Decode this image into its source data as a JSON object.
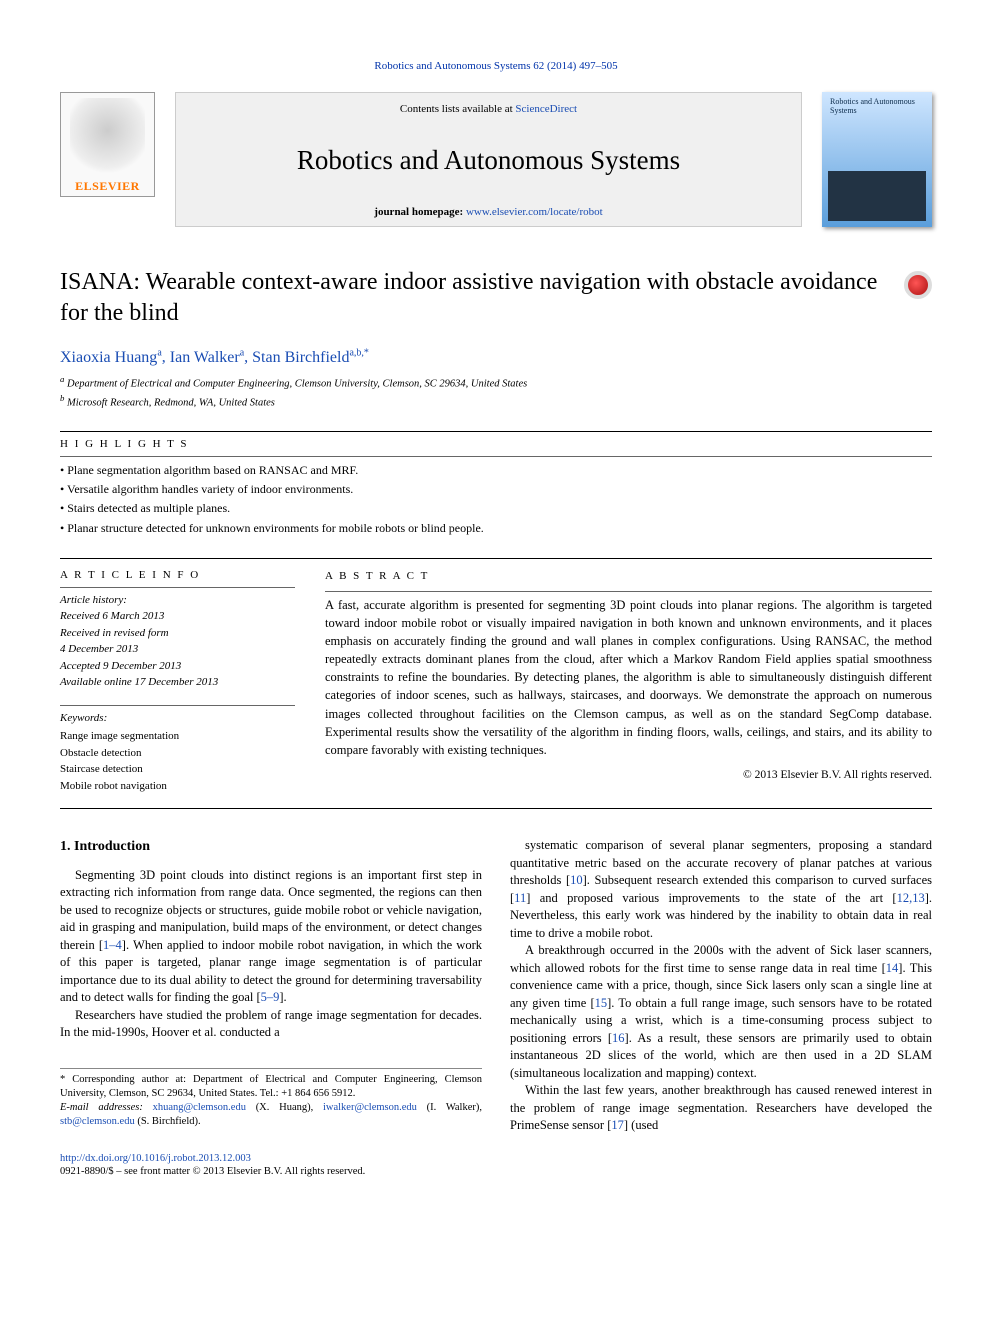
{
  "running_header": "Robotics and Autonomous Systems 62 (2014) 497–505",
  "masthead": {
    "elsevier": "ELSEVIER",
    "contents_prefix": "Contents lists available at ",
    "contents_link": "ScienceDirect",
    "journal_title": "Robotics and Autonomous Systems",
    "homepage_prefix": "journal homepage: ",
    "homepage_link": "www.elsevier.com/locate/robot",
    "cover_title": "Robotics and Autonomous Systems"
  },
  "title": "ISANA: Wearable context-aware indoor assistive navigation with obstacle avoidance for the blind",
  "authors_html": "Xiaoxia Huang|a|, Ian Walker|a|, Stan Birchfield|a,b,*",
  "authors": [
    {
      "name": "Xiaoxia Huang",
      "sup": "a"
    },
    {
      "name": "Ian Walker",
      "sup": "a"
    },
    {
      "name": "Stan Birchfield",
      "sup": "a,b,*"
    }
  ],
  "affiliations": [
    "a Department of Electrical and Computer Engineering, Clemson University, Clemson, SC 29634, United States",
    "b Microsoft Research, Redmond, WA, United States"
  ],
  "highlights_label": "H I G H L I G H T S",
  "highlights": [
    "Plane segmentation algorithm based on RANSAC and MRF.",
    "Versatile algorithm handles variety of indoor environments.",
    "Stairs detected as multiple planes.",
    "Planar structure detected for unknown environments for mobile robots or blind people."
  ],
  "info_label": "A R T I C L E   I N F O",
  "history_label": "Article history:",
  "history": [
    "Received 6 March 2013",
    "Received in revised form",
    "4 December 2013",
    "Accepted 9 December 2013",
    "Available online 17 December 2013"
  ],
  "keywords_label": "Keywords:",
  "keywords": [
    "Range image segmentation",
    "Obstacle detection",
    "Staircase detection",
    "Mobile robot navigation"
  ],
  "abstract_label": "A B S T R A C T",
  "abstract": "A fast, accurate algorithm is presented for segmenting 3D point clouds into planar regions. The algorithm is targeted toward indoor mobile robot or visually impaired navigation in both known and unknown environments, and it places emphasis on accurately finding the ground and wall planes in complex configurations. Using RANSAC, the method repeatedly extracts dominant planes from the cloud, after which a Markov Random Field applies spatial smoothness constraints to refine the boundaries. By detecting planes, the algorithm is able to simultaneously distinguish different categories of indoor scenes, such as hallways, staircases, and doorways. We demonstrate the approach on numerous images collected throughout facilities on the Clemson campus, as well as on the standard SegComp database. Experimental results show the versatility of the algorithm in finding floors, walls, ceilings, and stairs, and its ability to compare favorably with existing techniques.",
  "copyright": "© 2013 Elsevier B.V. All rights reserved.",
  "section1_heading": "1. Introduction",
  "col_left": [
    "Segmenting 3D point clouds into distinct regions is an important first step in extracting rich information from range data. Once segmented, the regions can then be used to recognize objects or structures, guide mobile robot or vehicle navigation, aid in grasping and manipulation, build maps of the environment, or detect changes therein [<ref>1–4</ref>]. When applied to indoor mobile robot navigation, in which the work of this paper is targeted, planar range image segmentation is of particular importance due to its dual ability to detect the ground for determining traversability and to detect walls for finding the goal [<ref>5–9</ref>].",
    "Researchers have studied the problem of range image segmentation for decades. In the mid-1990s, Hoover et al. conducted a"
  ],
  "col_right": [
    "systematic comparison of several planar segmenters, proposing a standard quantitative metric based on the accurate recovery of planar patches at various thresholds [<ref>10</ref>]. Subsequent research extended this comparison to curved surfaces [<ref>11</ref>] and proposed various improvements to the state of the art [<ref>12,13</ref>]. Nevertheless, this early work was hindered by the inability to obtain data in real time to drive a mobile robot.",
    "A breakthrough occurred in the 2000s with the advent of Sick laser scanners, which allowed robots for the first time to sense range data in real time [<ref>14</ref>]. This convenience came with a price, though, since Sick lasers only scan a single line at any given time [<ref>15</ref>]. To obtain a full range image, such sensors have to be rotated mechanically using a wrist, which is a time-consuming process subject to positioning errors [<ref>16</ref>]. As a result, these sensors are primarily used to obtain instantaneous 2D slices of the world, which are then used in a 2D SLAM (simultaneous localization and mapping) context.",
    "Within the last few years, another breakthrough has caused renewed interest in the problem of range image segmentation. Researchers have developed the PrimeSense sensor [<ref>17</ref>] (used"
  ],
  "footer": {
    "corr": "* Corresponding author at: Department of Electrical and Computer Engineering, Clemson University, Clemson, SC 29634, United States. Tel.: +1 864 656 5912.",
    "emails_label": "E-mail addresses:",
    "emails": [
      {
        "addr": "xhuang@clemson.edu",
        "who": "(X. Huang)"
      },
      {
        "addr": "iwalker@clemson.edu",
        "who": "(I. Walker)"
      },
      {
        "addr": "stb@clemson.edu",
        "who": "(S. Birchfield)"
      }
    ],
    "doi": "http://dx.doi.org/10.1016/j.robot.2013.12.003",
    "issn": "0921-8890/$ – see front matter © 2013 Elsevier B.V. All rights reserved."
  }
}
